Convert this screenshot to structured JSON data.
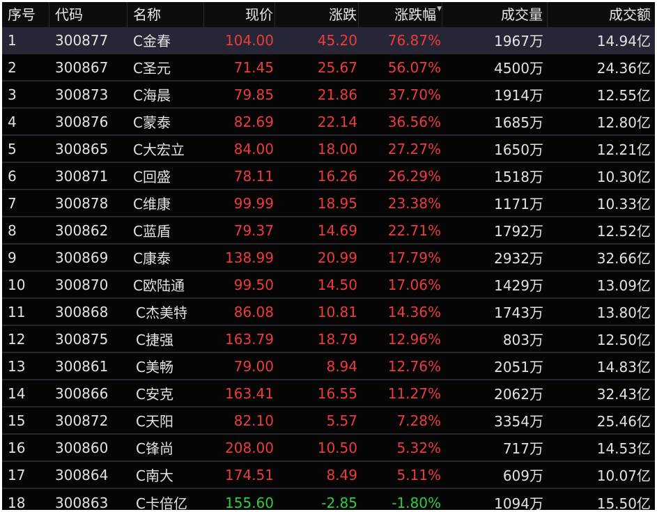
{
  "headers": {
    "index": "序号",
    "code": "代码",
    "name": "名称",
    "price": "现价",
    "change": "涨跌",
    "change_pct": "涨跌幅",
    "volume": "成交量",
    "amount": "成交额"
  },
  "sort": {
    "column": "change_pct",
    "direction": "desc",
    "icon": "sort-down-triangle-icon"
  },
  "colors": {
    "up": "#ee3b3b",
    "down": "#2fce3e",
    "background": "#050505",
    "selected_row": "#262636"
  },
  "rows": [
    {
      "index": "1",
      "code": "300877",
      "name": "C金春",
      "price": "104.00",
      "change": "45.20",
      "change_pct": "76.87%",
      "volume": "1967万",
      "amount": "14.94亿",
      "dir": "up"
    },
    {
      "index": "2",
      "code": "300867",
      "name": "C圣元",
      "price": "71.45",
      "change": "25.67",
      "change_pct": "56.07%",
      "volume": "4500万",
      "amount": "24.36亿",
      "dir": "up"
    },
    {
      "index": "3",
      "code": "300873",
      "name": "C海晨",
      "price": "79.85",
      "change": "21.86",
      "change_pct": "37.70%",
      "volume": "1914万",
      "amount": "12.55亿",
      "dir": "up"
    },
    {
      "index": "4",
      "code": "300876",
      "name": "C蒙泰",
      "price": "82.69",
      "change": "22.14",
      "change_pct": "36.56%",
      "volume": "1685万",
      "amount": "12.80亿",
      "dir": "up"
    },
    {
      "index": "5",
      "code": "300865",
      "name": "C大宏立",
      "price": "84.00",
      "change": "18.00",
      "change_pct": "27.27%",
      "volume": "1650万",
      "amount": "12.21亿",
      "dir": "up"
    },
    {
      "index": "6",
      "code": "300871",
      "name": "C回盛",
      "price": "78.11",
      "change": "16.26",
      "change_pct": "26.29%",
      "volume": "1518万",
      "amount": "10.30亿",
      "dir": "up"
    },
    {
      "index": "7",
      "code": "300878",
      "name": "C维康",
      "price": "99.99",
      "change": "18.95",
      "change_pct": "23.38%",
      "volume": "1171万",
      "amount": "10.33亿",
      "dir": "up"
    },
    {
      "index": "8",
      "code": "300862",
      "name": "C蓝盾",
      "price": "79.37",
      "change": "14.69",
      "change_pct": "22.71%",
      "volume": "1792万",
      "amount": "12.52亿",
      "dir": "up"
    },
    {
      "index": "9",
      "code": "300869",
      "name": "C康泰",
      "price": "138.99",
      "change": "20.99",
      "change_pct": "17.79%",
      "volume": "2932万",
      "amount": "32.66亿",
      "dir": "up"
    },
    {
      "index": "10",
      "code": "300870",
      "name": "C欧陆通",
      "price": "99.50",
      "change": "14.50",
      "change_pct": "17.06%",
      "volume": "1429万",
      "amount": "13.09亿",
      "dir": "up"
    },
    {
      "index": "11",
      "code": "300868",
      "name": "C杰美特",
      "price": "86.08",
      "change": "10.81",
      "change_pct": "14.36%",
      "volume": "1743万",
      "amount": "13.80亿",
      "dir": "up"
    },
    {
      "index": "12",
      "code": "300875",
      "name": "C捷强",
      "price": "163.79",
      "change": "18.79",
      "change_pct": "12.96%",
      "volume": "803万",
      "amount": "12.50亿",
      "dir": "up"
    },
    {
      "index": "13",
      "code": "300861",
      "name": "C美畅",
      "price": "79.00",
      "change": "8.94",
      "change_pct": "12.76%",
      "volume": "2051万",
      "amount": "14.83亿",
      "dir": "up"
    },
    {
      "index": "14",
      "code": "300866",
      "name": "C安克",
      "price": "163.41",
      "change": "16.55",
      "change_pct": "11.27%",
      "volume": "2062万",
      "amount": "32.43亿",
      "dir": "up"
    },
    {
      "index": "15",
      "code": "300872",
      "name": "C天阳",
      "price": "82.10",
      "change": "5.57",
      "change_pct": "7.28%",
      "volume": "3354万",
      "amount": "25.46亿",
      "dir": "up"
    },
    {
      "index": "16",
      "code": "300860",
      "name": "C锋尚",
      "price": "208.00",
      "change": "10.50",
      "change_pct": "5.32%",
      "volume": "717万",
      "amount": "14.53亿",
      "dir": "up"
    },
    {
      "index": "17",
      "code": "300864",
      "name": "C南大",
      "price": "174.51",
      "change": "8.49",
      "change_pct": "5.11%",
      "volume": "609万",
      "amount": "10.07亿",
      "dir": "up"
    },
    {
      "index": "18",
      "code": "300863",
      "name": "C卡倍亿",
      "price": "155.60",
      "change": "-2.85",
      "change_pct": "-1.80%",
      "volume": "1094万",
      "amount": "15.50亿",
      "dir": "down"
    }
  ]
}
